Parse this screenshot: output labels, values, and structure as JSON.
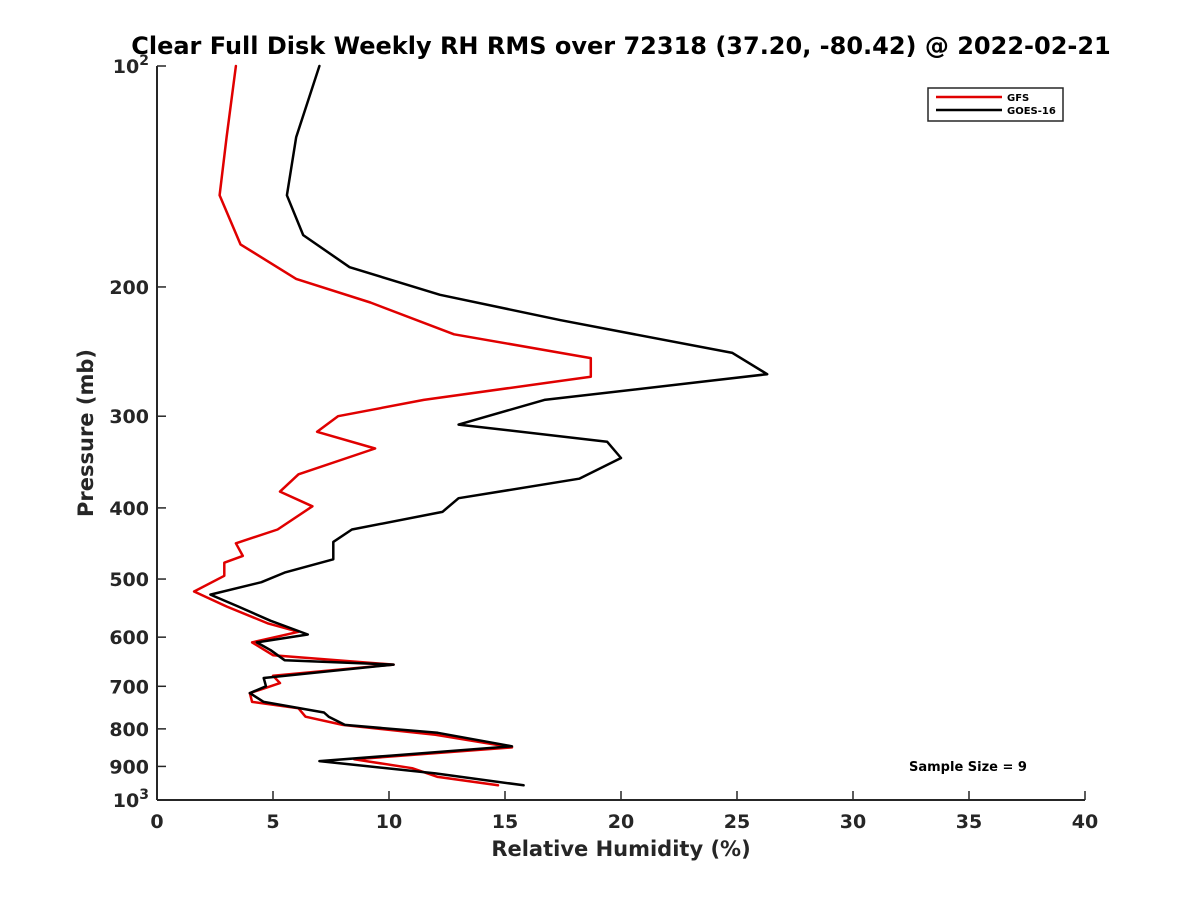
{
  "chart_data": {
    "type": "line",
    "title": "Clear Full Disk Weekly RH RMS over 72318 (37.20, -80.42) @ 2022-02-21",
    "xlabel": "Relative Humidity (%)",
    "ylabel": "Pressure (mb)",
    "xlim": [
      0,
      40
    ],
    "ylim": [
      100,
      1000
    ],
    "y_scale": "log",
    "y_reversed": true,
    "x_ticks": [
      0,
      5,
      10,
      15,
      20,
      25,
      30,
      35,
      40
    ],
    "x_tick_labels": [
      "0",
      "5",
      "10",
      "15",
      "20",
      "25",
      "30",
      "35",
      "40"
    ],
    "y_ticks": [
      100,
      200,
      300,
      400,
      500,
      600,
      700,
      800,
      900,
      1000
    ],
    "y_tick_labels": [
      {
        "base": "10",
        "exp": "2"
      },
      {
        "base": "200",
        "exp": ""
      },
      {
        "base": "300",
        "exp": ""
      },
      {
        "base": "400",
        "exp": ""
      },
      {
        "base": "500",
        "exp": ""
      },
      {
        "base": "600",
        "exp": ""
      },
      {
        "base": "700",
        "exp": ""
      },
      {
        "base": "800",
        "exp": ""
      },
      {
        "base": "900",
        "exp": ""
      },
      {
        "base": "10",
        "exp": "3"
      }
    ],
    "grid": false,
    "legend_position": "top-right",
    "series": [
      {
        "name": "GFS",
        "color": "#e00000",
        "points": [
          [
            3.4,
            100
          ],
          [
            3.0,
            125
          ],
          [
            2.7,
            150
          ],
          [
            3.6,
            175
          ],
          [
            6.0,
            195
          ],
          [
            9.2,
            210
          ],
          [
            12.8,
            232
          ],
          [
            18.7,
            250
          ],
          [
            18.7,
            265
          ],
          [
            11.5,
            285
          ],
          [
            7.8,
            300
          ],
          [
            6.9,
            315
          ],
          [
            9.4,
            332
          ],
          [
            6.1,
            360
          ],
          [
            5.3,
            380
          ],
          [
            6.7,
            398
          ],
          [
            5.2,
            428
          ],
          [
            3.4,
            447
          ],
          [
            3.7,
            465
          ],
          [
            2.9,
            475
          ],
          [
            2.9,
            495
          ],
          [
            1.6,
            520
          ],
          [
            3.0,
            545
          ],
          [
            4.8,
            575
          ],
          [
            6.1,
            590
          ],
          [
            4.1,
            610
          ],
          [
            5.0,
            635
          ],
          [
            10.2,
            654
          ],
          [
            5.0,
            677
          ],
          [
            5.3,
            693
          ],
          [
            4.6,
            705
          ],
          [
            4.0,
            715
          ],
          [
            4.1,
            735
          ],
          [
            6.1,
            750
          ],
          [
            6.4,
            770
          ],
          [
            8.0,
            790
          ],
          [
            12.0,
            815
          ],
          [
            15.3,
            848
          ],
          [
            8.5,
            880
          ],
          [
            11.0,
            905
          ],
          [
            12.1,
            930
          ],
          [
            14.7,
            955
          ]
        ]
      },
      {
        "name": "GOES-16",
        "color": "#000000",
        "points": [
          [
            7.0,
            100
          ],
          [
            6.0,
            125
          ],
          [
            5.6,
            150
          ],
          [
            6.3,
            170
          ],
          [
            8.3,
            188
          ],
          [
            12.2,
            205
          ],
          [
            17.4,
            222
          ],
          [
            24.8,
            246
          ],
          [
            26.3,
            263
          ],
          [
            16.7,
            285
          ],
          [
            13.0,
            308
          ],
          [
            19.4,
            325
          ],
          [
            20.0,
            342
          ],
          [
            18.2,
            365
          ],
          [
            13.0,
            388
          ],
          [
            12.3,
            405
          ],
          [
            8.4,
            428
          ],
          [
            7.6,
            445
          ],
          [
            7.6,
            470
          ],
          [
            5.5,
            490
          ],
          [
            4.5,
            505
          ],
          [
            2.3,
            525
          ],
          [
            3.5,
            545
          ],
          [
            4.9,
            570
          ],
          [
            6.5,
            595
          ],
          [
            4.3,
            610
          ],
          [
            4.9,
            625
          ],
          [
            5.5,
            645
          ],
          [
            10.2,
            654
          ],
          [
            4.6,
            682
          ],
          [
            4.7,
            700
          ],
          [
            4.0,
            715
          ],
          [
            4.6,
            735
          ],
          [
            7.2,
            760
          ],
          [
            7.4,
            770
          ],
          [
            8.1,
            790
          ],
          [
            12.1,
            810
          ],
          [
            15.3,
            845
          ],
          [
            10.1,
            870
          ],
          [
            7.0,
            885
          ],
          [
            12.0,
            920
          ],
          [
            15.8,
            955
          ]
        ]
      }
    ],
    "annotations": [
      "Sample Size = 9"
    ]
  }
}
